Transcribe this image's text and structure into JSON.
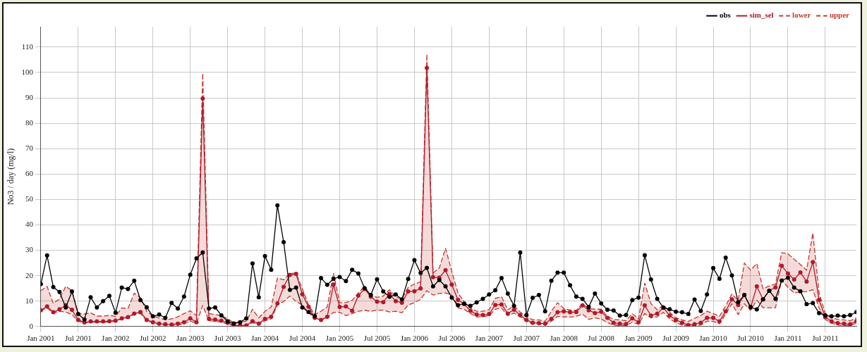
{
  "chart_data": {
    "type": "line",
    "ylabel": "No3 / day (mg/l)",
    "x": [
      "2001-01",
      "2001-02",
      "2001-03",
      "2001-04",
      "2001-05",
      "2001-06",
      "2001-07",
      "2001-08",
      "2001-09",
      "2001-10",
      "2001-11",
      "2001-12",
      "2002-01",
      "2002-02",
      "2002-03",
      "2002-04",
      "2002-05",
      "2002-06",
      "2002-07",
      "2002-08",
      "2002-09",
      "2002-10",
      "2002-11",
      "2002-12",
      "2003-01",
      "2003-02",
      "2003-03",
      "2003-04",
      "2003-05",
      "2003-06",
      "2003-07",
      "2003-08",
      "2003-09",
      "2003-10",
      "2003-11",
      "2003-12",
      "2004-01",
      "2004-02",
      "2004-03",
      "2004-04",
      "2004-05",
      "2004-06",
      "2004-07",
      "2004-08",
      "2004-09",
      "2004-10",
      "2004-11",
      "2004-12",
      "2005-01",
      "2005-02",
      "2005-03",
      "2005-04",
      "2005-05",
      "2005-06",
      "2005-07",
      "2005-08",
      "2005-09",
      "2005-10",
      "2005-11",
      "2005-12",
      "2006-01",
      "2006-02",
      "2006-03",
      "2006-04",
      "2006-05",
      "2006-06",
      "2006-07",
      "2006-08",
      "2006-09",
      "2006-10",
      "2006-11",
      "2006-12",
      "2007-01",
      "2007-02",
      "2007-03",
      "2007-04",
      "2007-05",
      "2007-06",
      "2007-07",
      "2007-08",
      "2007-09",
      "2007-10",
      "2007-11",
      "2007-12",
      "2008-01",
      "2008-02",
      "2008-03",
      "2008-04",
      "2008-05",
      "2008-06",
      "2008-07",
      "2008-08",
      "2008-09",
      "2008-10",
      "2008-11",
      "2008-12",
      "2009-01",
      "2009-02",
      "2009-03",
      "2009-04",
      "2009-05",
      "2009-06",
      "2009-07",
      "2009-08",
      "2009-09",
      "2009-10",
      "2009-11",
      "2009-12",
      "2010-01",
      "2010-02",
      "2010-03",
      "2010-04",
      "2010-05",
      "2010-06",
      "2010-07",
      "2010-08",
      "2010-09",
      "2010-10",
      "2010-11",
      "2010-12",
      "2011-01",
      "2011-02",
      "2011-03",
      "2011-04",
      "2011-05",
      "2011-06",
      "2011-07",
      "2011-08",
      "2011-09",
      "2011-10",
      "2011-11",
      "2011-12"
    ],
    "series": [
      {
        "name": "obs",
        "type": "line",
        "color": "#000000",
        "marker": "circle",
        "line_style": "solid",
        "values": [
          16.7,
          28,
          15.5,
          13.6,
          7.5,
          13.8,
          4.9,
          2.8,
          11.5,
          7.5,
          10,
          12.1,
          5.4,
          15.3,
          14.8,
          18,
          10.4,
          7.6,
          4,
          4.7,
          3.4,
          9.3,
          7.1,
          11.8,
          20.4,
          26.8,
          29.1,
          7.1,
          7.5,
          4.4,
          2,
          1.2,
          1.7,
          3.2,
          24.8,
          11.5,
          27.7,
          22.3,
          47.7,
          33.2,
          14.4,
          15.3,
          7.5,
          5.7,
          4,
          19.1,
          16.4,
          18.8,
          19.5,
          17.9,
          22.3,
          20.9,
          15.1,
          12.4,
          18.6,
          13.8,
          11.7,
          12.6,
          10.7,
          18.7,
          26.1,
          21.1,
          23.1,
          15.8,
          18.3,
          15.8,
          11.4,
          8.4,
          9,
          8.1,
          9.5,
          10.9,
          12.6,
          14.3,
          19.1,
          13,
          8.1,
          29.1,
          4.5,
          11.3,
          12.4,
          6,
          18,
          21.2,
          21.2,
          16.2,
          11.8,
          10.9,
          7.7,
          13,
          9.1,
          6.6,
          6.3,
          4.3,
          4.5,
          10.4,
          11.4,
          28.1,
          18.5,
          10.9,
          7.4,
          6.8,
          5.8,
          5.6,
          4.9,
          10.6,
          6.1,
          12.6,
          23,
          18.8,
          27.1,
          20.1,
          9.6,
          12.4,
          7.7,
          6.7,
          10.7,
          14.1,
          10.9,
          18.1,
          19.2,
          15.3,
          13.9,
          8.8,
          9.2,
          5.3,
          4.4,
          4,
          4.3,
          4,
          4.5,
          5.7
        ]
      },
      {
        "name": "sim_sel",
        "type": "line",
        "color": "#b2182b",
        "marker": "circle",
        "line_style": "solid",
        "values": [
          6.4,
          7.9,
          5.6,
          6.8,
          8.4,
          6.6,
          2.6,
          1.6,
          2,
          2,
          2,
          2.1,
          2.3,
          3.2,
          3.7,
          5.1,
          5.7,
          2.6,
          1.7,
          1.1,
          0.9,
          0.8,
          1.1,
          1.7,
          3.2,
          1.7,
          89.7,
          3,
          2.7,
          2.3,
          1.5,
          0.4,
          0.4,
          0.4,
          2.1,
          1.1,
          3,
          3.8,
          9.1,
          15.6,
          20.3,
          20.7,
          12.7,
          7.8,
          3.4,
          2.6,
          3.8,
          16.5,
          7.7,
          7.9,
          6.2,
          12.2,
          14.8,
          11.7,
          9.8,
          9.6,
          12.8,
          10,
          9.4,
          13.8,
          13.9,
          15,
          101.8,
          19.4,
          19.2,
          22.2,
          16.5,
          10.5,
          8.8,
          6.2,
          4.7,
          4.5,
          4.9,
          8.5,
          8.7,
          5.1,
          6.6,
          4.5,
          2.6,
          1.5,
          1.3,
          1.1,
          3,
          5.6,
          6,
          5.6,
          5.7,
          8.3,
          6.4,
          5.3,
          5.8,
          3.4,
          1.5,
          1.1,
          1,
          3.2,
          1.7,
          8.3,
          4.3,
          5.1,
          7.4,
          4.3,
          2.6,
          1.5,
          0.6,
          0.9,
          1.5,
          3.4,
          3.4,
          2,
          6,
          10.7,
          8.5,
          12.4,
          7.4,
          15.8,
          10.7,
          14.1,
          15.4,
          23.9,
          20.9,
          18.5,
          21.3,
          17.7,
          25.4,
          10.5,
          3.7,
          2,
          1.3,
          1.1,
          0.9,
          2.1
        ]
      },
      {
        "name": "lower",
        "type": "line",
        "color": "#c0392b",
        "marker": "none",
        "line_style": "dashed",
        "values": [
          6.2,
          7.3,
          5.3,
          6,
          5.7,
          4.7,
          2.1,
          1.5,
          1.7,
          1.7,
          1.7,
          1.8,
          2.1,
          3,
          3.4,
          4.9,
          5.1,
          2.3,
          1.5,
          0.9,
          0.6,
          0.5,
          0.6,
          1.1,
          2.1,
          1.3,
          8.3,
          2.3,
          2.1,
          1.7,
          0.9,
          0.3,
          0.3,
          0.3,
          1.5,
          0.7,
          2.3,
          3,
          8.5,
          9.8,
          12,
          9.8,
          8.5,
          5.5,
          3.2,
          2.6,
          3.4,
          5.6,
          5.6,
          4.3,
          5.1,
          6,
          6.4,
          6,
          6.4,
          6.4,
          5.7,
          6,
          5.4,
          8.5,
          9.4,
          10.7,
          14.1,
          12.4,
          13,
          13.2,
          12.4,
          7.3,
          6.8,
          5.1,
          3.8,
          3.8,
          4.3,
          6.8,
          7.3,
          4.3,
          5.3,
          3.8,
          2.1,
          1.1,
          0.9,
          0.7,
          2.1,
          4,
          3.8,
          3.7,
          4,
          4.9,
          2.8,
          3.4,
          3,
          1.5,
          0.6,
          0.4,
          0.4,
          1.7,
          0.9,
          5.1,
          3.4,
          3.8,
          5.6,
          3,
          1.5,
          0.6,
          0.3,
          0.3,
          0.6,
          2.1,
          2,
          1.1,
          4.9,
          9,
          4.7,
          9,
          6.4,
          10.3,
          7.4,
          7.4,
          7.4,
          18.4,
          15.4,
          13.2,
          13.7,
          13.7,
          14.5,
          7.3,
          2.8,
          1.3,
          0.6,
          0.4,
          0.4,
          1.3
        ]
      },
      {
        "name": "upper",
        "type": "area",
        "color": "#c0392b",
        "marker": "none",
        "line_style": "dashed",
        "values": [
          14.1,
          15.8,
          9.1,
          10.9,
          15.8,
          14.1,
          5.1,
          4.9,
          5.4,
          4.1,
          4.1,
          4.4,
          4,
          7.3,
          7.1,
          13.1,
          11.4,
          6,
          4.1,
          3.4,
          2.6,
          3,
          3.8,
          5.1,
          6.2,
          4.3,
          99.7,
          5.1,
          4.7,
          4.3,
          3,
          1.5,
          1.7,
          2.1,
          6.8,
          3.4,
          6,
          7.7,
          19.1,
          18.4,
          20.8,
          21.1,
          14.8,
          8.5,
          4.7,
          6,
          7.7,
          20.9,
          9.4,
          9.4,
          10.3,
          13.2,
          15.8,
          12.2,
          11.5,
          12,
          14.5,
          11.5,
          10.9,
          15.4,
          16.7,
          17.5,
          107.2,
          21.1,
          23,
          30.8,
          21.8,
          13.2,
          9.8,
          7.3,
          6,
          6,
          6.6,
          11.1,
          11.7,
          6.6,
          8.1,
          5.7,
          3.8,
          2.7,
          2.6,
          2.1,
          6,
          9.4,
          7.1,
          6.5,
          6.4,
          9,
          7.1,
          6.8,
          6.8,
          4,
          2.8,
          2.6,
          2.3,
          5.1,
          3,
          17.1,
          9,
          6.6,
          8.5,
          5.6,
          3.4,
          2.6,
          2,
          3.2,
          4.3,
          6,
          5.1,
          4,
          8.1,
          12.8,
          10.3,
          25,
          22.2,
          24.8,
          14.8,
          16,
          16.7,
          29.1,
          28.6,
          26.5,
          24.4,
          22.2,
          36.8,
          13.2,
          5.1,
          3.4,
          2.8,
          2.6,
          2.3,
          3.4
        ]
      }
    ],
    "xlim": [
      "2001-01",
      "2011-12"
    ],
    "xticks": [
      {
        "value": "2001-01",
        "label": "Jan 2001"
      },
      {
        "value": "2001-07",
        "label": "Jul 2001"
      },
      {
        "value": "2002-01",
        "label": "Jan 2002"
      },
      {
        "value": "2002-07",
        "label": "Jul 2002"
      },
      {
        "value": "2003-01",
        "label": "Jan 2003"
      },
      {
        "value": "2003-07",
        "label": "Jul 2003"
      },
      {
        "value": "2004-01",
        "label": "Jan 2004"
      },
      {
        "value": "2004-07",
        "label": "Jul 2004"
      },
      {
        "value": "2005-01",
        "label": "Jan 2005"
      },
      {
        "value": "2005-07",
        "label": "Jul 2005"
      },
      {
        "value": "2006-01",
        "label": "Jan 2006"
      },
      {
        "value": "2006-07",
        "label": "Jul 2006"
      },
      {
        "value": "2007-01",
        "label": "Jan 2007"
      },
      {
        "value": "2007-07",
        "label": "Jul 2007"
      },
      {
        "value": "2008-01",
        "label": "Jan 2008"
      },
      {
        "value": "2008-07",
        "label": "Jul 2008"
      },
      {
        "value": "2009-01",
        "label": "Jan 2009"
      },
      {
        "value": "2009-07",
        "label": "Jul 2009"
      },
      {
        "value": "2010-01",
        "label": "Jan 2010"
      },
      {
        "value": "2010-07",
        "label": "Jul 2010"
      },
      {
        "value": "2011-01",
        "label": "Jan 2011"
      },
      {
        "value": "2011-07",
        "label": "Jul 2011"
      }
    ],
    "ylim": [
      0,
      118
    ],
    "yticks": [
      0,
      10,
      20,
      30,
      40,
      50,
      60,
      70,
      80,
      90,
      100,
      110
    ],
    "grid": true,
    "legend": "top right"
  }
}
